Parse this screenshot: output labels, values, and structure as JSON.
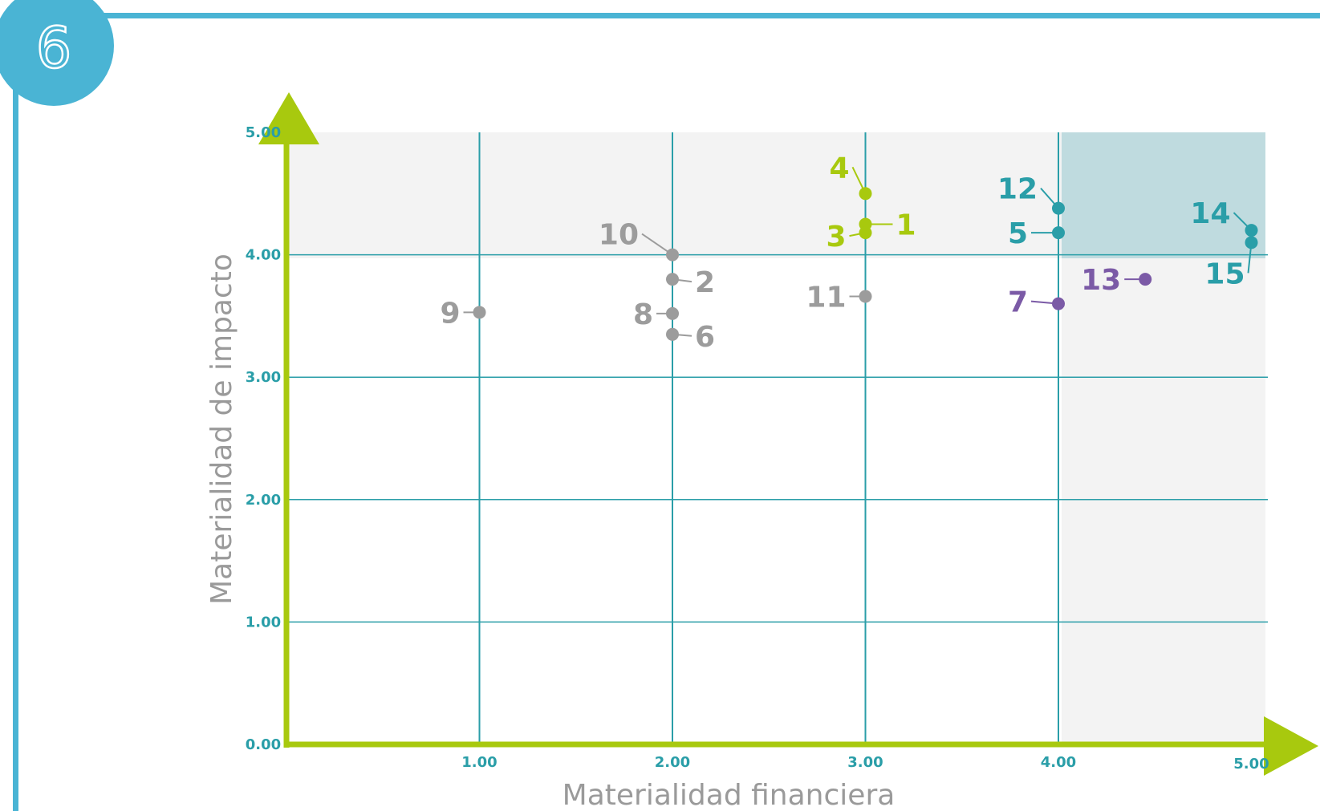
{
  "badge": {
    "number": "6"
  },
  "colors": {
    "frame": "#4ab4d4",
    "axis": "#a8c90e",
    "grid": "#2a9ea8",
    "highlight_bg": "#f3f3f3",
    "priority_zone": "#bfdbdf",
    "gray": "#9c9c9c",
    "lime": "#a8c90e",
    "teal": "#2a9ea8",
    "purple": "#7b5aa6"
  },
  "chart_data": {
    "type": "scatter",
    "xlabel": "Materialidad financiera",
    "ylabel": "Materialidad de impacto",
    "xlim": [
      0,
      5
    ],
    "ylim": [
      0,
      5
    ],
    "xticks": [
      "1.00",
      "2.00",
      "3.00",
      "4.00",
      "5.00"
    ],
    "yticks": [
      "0.00",
      "1.00",
      "2.00",
      "3.00",
      "4.00",
      "5.00"
    ],
    "grid": true,
    "highlight_band": {
      "y_from": 4,
      "y_to": 5
    },
    "priority_zone": {
      "x_from": 4,
      "x_to": 5,
      "y_from": 4,
      "y_to": 5
    },
    "points": [
      {
        "label": "1",
        "x": 3.0,
        "y": 4.25,
        "color": "lime"
      },
      {
        "label": "2",
        "x": 2.0,
        "y": 3.8,
        "color": "gray"
      },
      {
        "label": "3",
        "x": 3.0,
        "y": 4.18,
        "color": "lime"
      },
      {
        "label": "4",
        "x": 3.0,
        "y": 4.5,
        "color": "lime"
      },
      {
        "label": "5",
        "x": 4.0,
        "y": 4.18,
        "color": "teal"
      },
      {
        "label": "6",
        "x": 2.0,
        "y": 3.35,
        "color": "gray"
      },
      {
        "label": "7",
        "x": 4.0,
        "y": 3.6,
        "color": "purple"
      },
      {
        "label": "8",
        "x": 2.0,
        "y": 3.52,
        "color": "gray"
      },
      {
        "label": "9",
        "x": 1.0,
        "y": 3.53,
        "color": "gray"
      },
      {
        "label": "10",
        "x": 2.0,
        "y": 4.0,
        "color": "gray"
      },
      {
        "label": "11",
        "x": 3.0,
        "y": 3.66,
        "color": "gray"
      },
      {
        "label": "12",
        "x": 4.0,
        "y": 4.38,
        "color": "teal"
      },
      {
        "label": "13",
        "x": 4.45,
        "y": 3.8,
        "color": "purple"
      },
      {
        "label": "14",
        "x": 5.0,
        "y": 4.2,
        "color": "teal"
      },
      {
        "label": "15",
        "x": 5.0,
        "y": 4.1,
        "color": "teal"
      }
    ]
  }
}
